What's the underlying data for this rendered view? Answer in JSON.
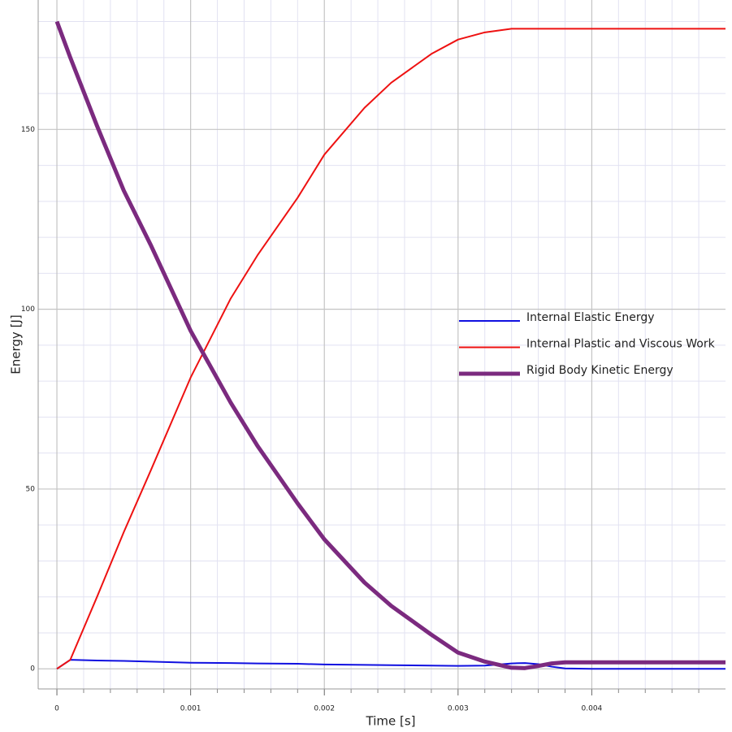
{
  "chart_data": {
    "type": "line",
    "x_label": "Time [s]",
    "y_label": "Energy [J]",
    "x": [
      0,
      0.0001,
      0.0003,
      0.0005,
      0.0007,
      0.001,
      0.0013,
      0.0015,
      0.0018,
      0.002,
      0.0023,
      0.0025,
      0.0028,
      0.003,
      0.0032,
      0.0034,
      0.0035,
      0.0036,
      0.0037,
      0.0038,
      0.004,
      0.0045,
      0.005
    ],
    "series": [
      {
        "name": "Internal Elastic Energy",
        "color": "#1010e0",
        "width": 2,
        "values": [
          0,
          2.5,
          2.3,
          2.2,
          2,
          1.7,
          1.6,
          1.5,
          1.4,
          1.2,
          1.1,
          1,
          0.9,
          0.8,
          0.9,
          1.5,
          1.6,
          1.3,
          0.6,
          0.1,
          0,
          0,
          0
        ]
      },
      {
        "name": "Internal Plastic and Viscous Work",
        "color": "#ee1111",
        "width": 2,
        "values": [
          0,
          2.5,
          20,
          38,
          55,
          81,
          103,
          115,
          131,
          143,
          156,
          163,
          171,
          175,
          177,
          178,
          178,
          178,
          178,
          178,
          178,
          178,
          178
        ]
      },
      {
        "name": "Rigid Body Kinetic Energy",
        "color": "#7b2a7f",
        "width": 5,
        "values": [
          180,
          170,
          151,
          133,
          118,
          94,
          74,
          62,
          46,
          36,
          24,
          17.5,
          9.5,
          4.5,
          2,
          0.3,
          0.2,
          0.8,
          1.5,
          1.8,
          1.8,
          1.8,
          1.8
        ]
      }
    ],
    "xlim": [
      -0.00014,
      0.005
    ],
    "ylim": [
      -5.6,
      186
    ],
    "xticks": [
      0,
      0.001,
      0.002,
      0.003,
      0.004
    ],
    "yticks": [
      0,
      50,
      100,
      150
    ],
    "xminorticks": [
      0.0002,
      0.0004,
      0.0006,
      0.0008,
      0.0012,
      0.0014,
      0.0016,
      0.0018,
      0.0022,
      0.0024,
      0.0026,
      0.0028,
      0.0032,
      0.0034,
      0.0036,
      0.0038,
      0.0042,
      0.0044,
      0.0046,
      0.0048
    ],
    "yminorticks": [
      10,
      20,
      30,
      40,
      60,
      70,
      80,
      90,
      110,
      120,
      130,
      140,
      160,
      170,
      180
    ],
    "grid": true,
    "legend_position": "center-right"
  }
}
